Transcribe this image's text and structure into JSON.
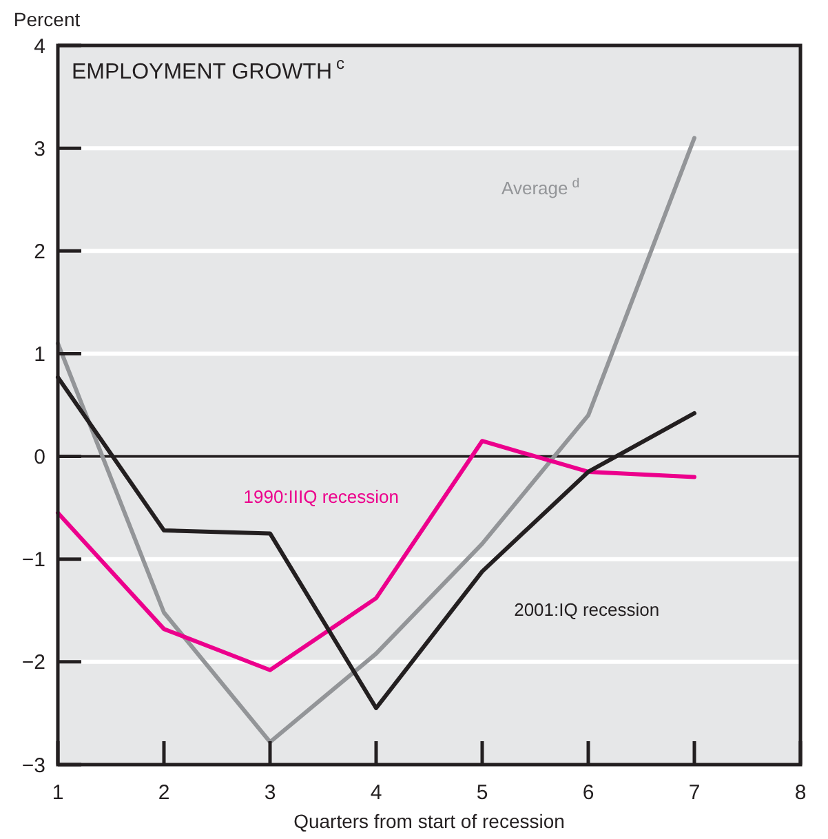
{
  "chart_data": {
    "type": "line",
    "title": "EMPLOYMENT GROWTH$^{c}$",
    "xlabel": "Quarters from start of recession",
    "ylabel": "Percent",
    "x": [
      1,
      2,
      3,
      4,
      5,
      6,
      7
    ],
    "series": [
      {
        "name": "Average$^{d}$",
        "color": "#939598",
        "values": [
          1.1,
          -1.52,
          -2.78,
          -1.92,
          -0.85,
          0.4,
          3.1
        ]
      },
      {
        "name": "1990:IIIQ recession",
        "color": "#ec008c",
        "values": [
          -0.55,
          -1.68,
          -2.08,
          -1.38,
          0.15,
          -0.15,
          -0.2
        ]
      },
      {
        "name": "2001:IQ recession",
        "color": "#231f20",
        "values": [
          0.77,
          -0.72,
          -0.75,
          -2.45,
          -1.12,
          -0.15,
          0.42
        ]
      }
    ],
    "xlim": [
      1,
      8
    ],
    "xticks": [
      1,
      2,
      3,
      4,
      5,
      6,
      7,
      8
    ],
    "ylim": [
      -3,
      4
    ],
    "yticks": [
      -3,
      -2,
      -1,
      0,
      1,
      2,
      3,
      4
    ],
    "ref_lines": [
      {
        "axis": "y",
        "value": 0,
        "label": null,
        "color": "#231f20"
      }
    ],
    "grid": "y",
    "legend": false,
    "marker": "none",
    "line_style": "solid"
  }
}
